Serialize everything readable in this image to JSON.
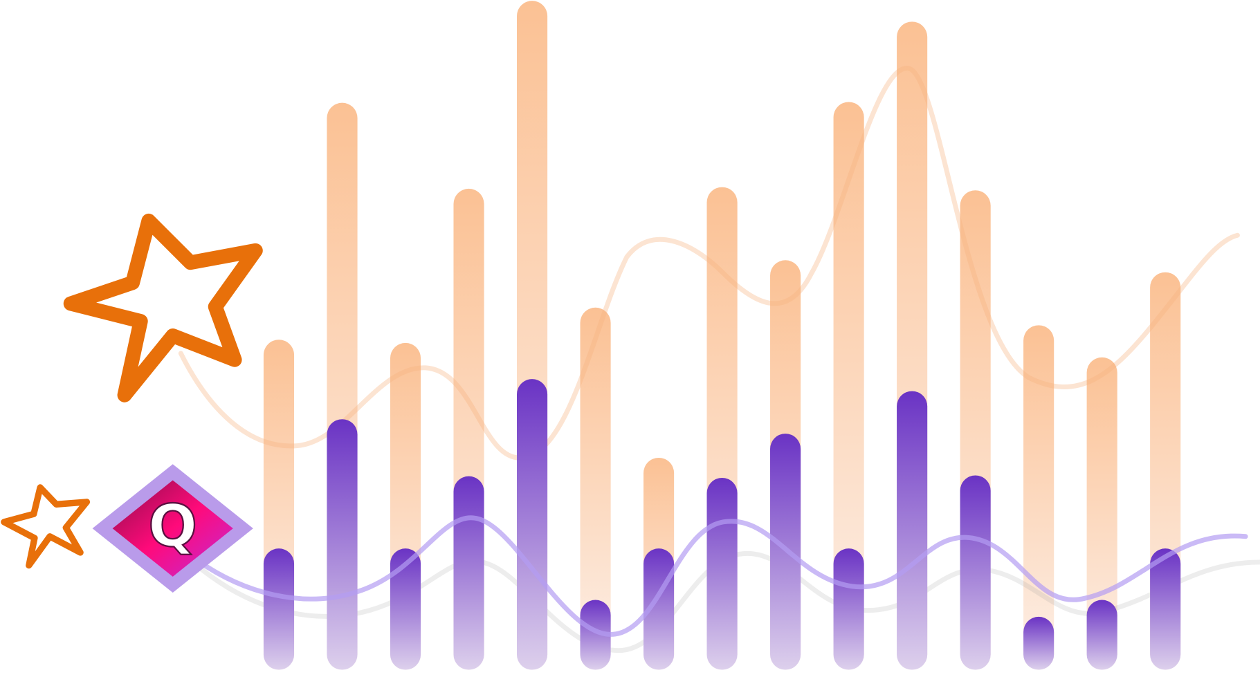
{
  "chart_data": {
    "type": "bar",
    "annotation": "Q",
    "categories": [
      null,
      null,
      null,
      null,
      null,
      null,
      null,
      null,
      null,
      null,
      null,
      null,
      null,
      null,
      null
    ],
    "series": [
      {
        "color": "#fbc194",
        "values": [
          373,
          668,
          369,
          561,
          795,
          413,
          226,
          563,
          472,
          669,
          769,
          559,
          391,
          351,
          457
        ]
      },
      {
        "color": "#6e38c6",
        "values": [
          113,
          274,
          113,
          203,
          324,
          49,
          113,
          201,
          256,
          113,
          309,
          204,
          28,
          49,
          113
        ]
      }
    ],
    "ylim": [
      0,
      800
    ]
  }
}
